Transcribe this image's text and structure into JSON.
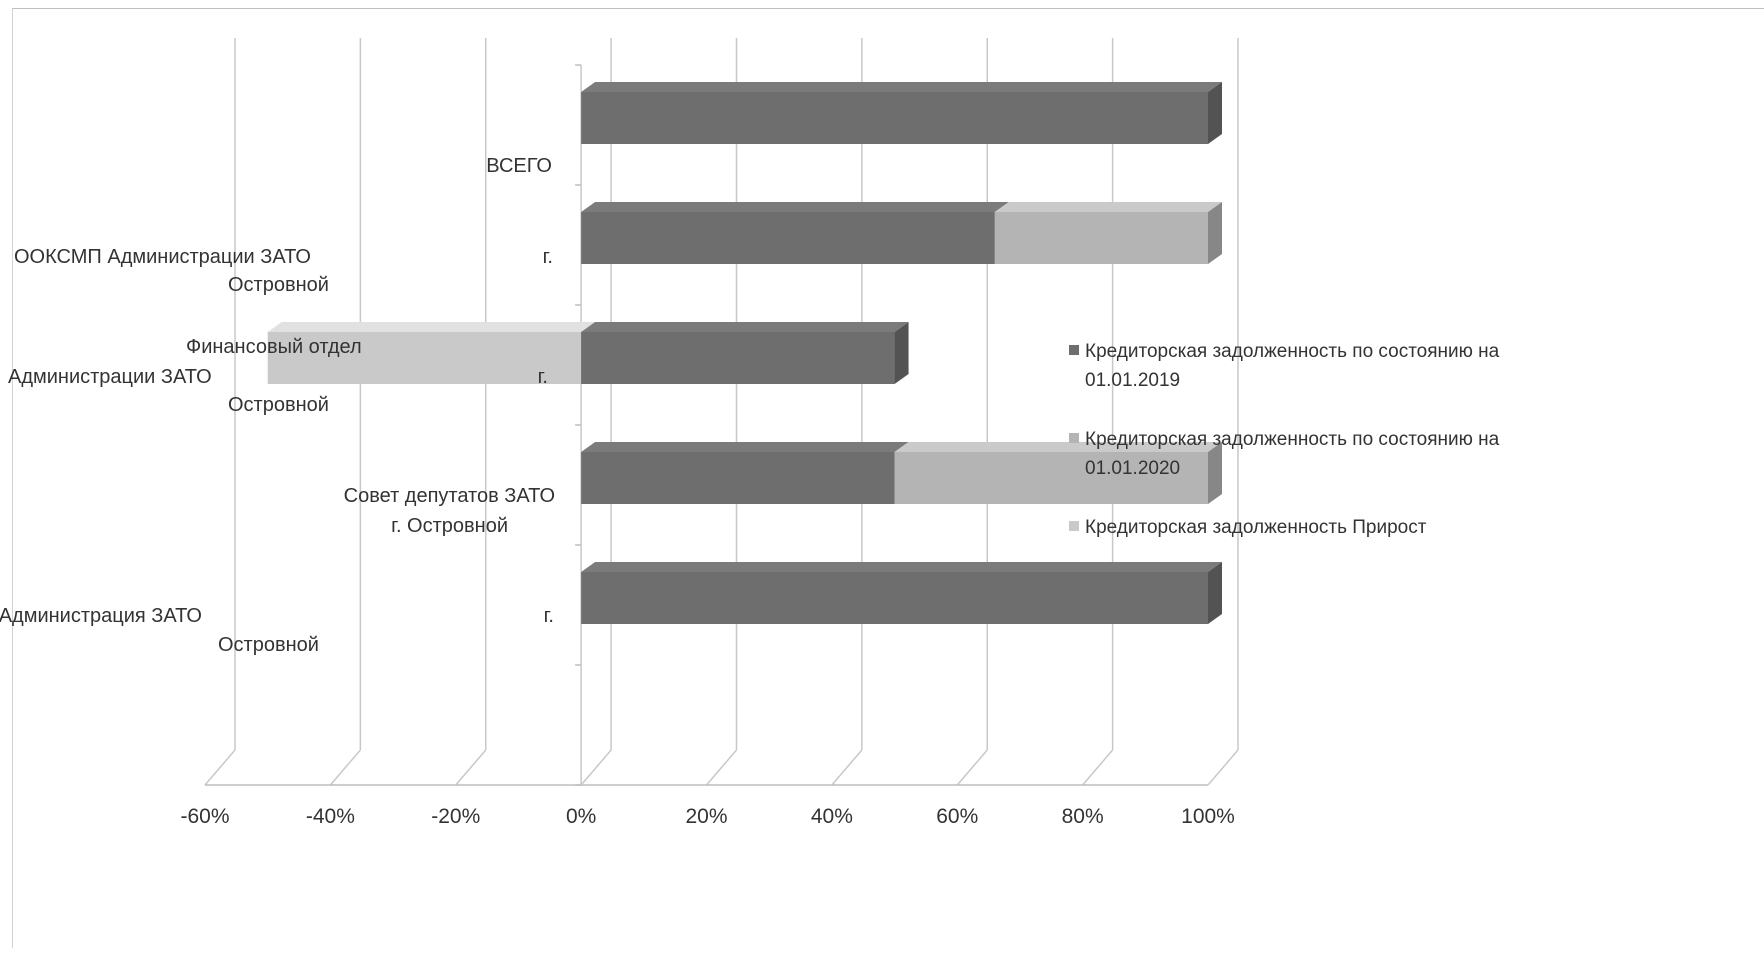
{
  "chart_data": {
    "type": "bar",
    "orientation": "horizontal",
    "stacked": "percent",
    "three_d": true,
    "categories": [
      "ВСЕГО",
      "ООКСМП Администрации ЗАТО г. Островной",
      "Финансовый отдел Администрации ЗАТО г. Островной",
      "Совет депутатов ЗАТО г. Островной",
      "Администрация ЗАТО г. Островной"
    ],
    "series": [
      {
        "name": "Кредиторская задолженность по состоянию на 01.01.2019",
        "values": [
          100,
          66,
          50,
          50,
          100
        ],
        "color": "#6e6e6e"
      },
      {
        "name": "Кредиторская задолженность по состоянию на 01.01.2020",
        "values": [
          0,
          34,
          0,
          50,
          0
        ],
        "color": "#b4b4b4"
      },
      {
        "name": "Кредиторская задолженность Прирост",
        "values": [
          0,
          0,
          -50,
          0,
          0
        ],
        "color": "#c9c9c9"
      }
    ],
    "xlim": [
      -60,
      100
    ],
    "x_ticks": [
      "-60%",
      "-40%",
      "-20%",
      "0%",
      "20%",
      "40%",
      "60%",
      "80%",
      "100%"
    ],
    "grid": true,
    "legend_position": "right"
  }
}
